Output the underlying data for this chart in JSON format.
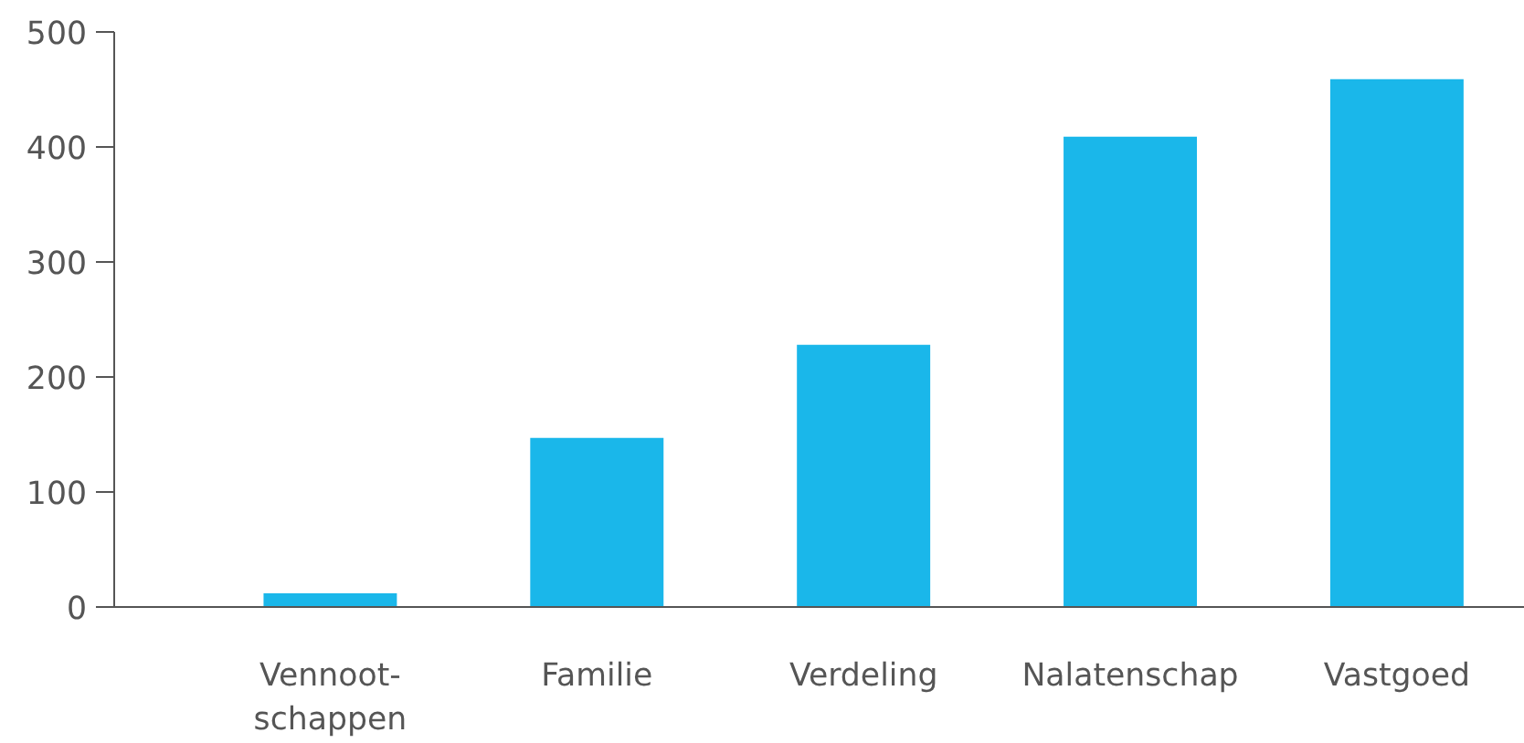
{
  "chart_data": {
    "type": "bar",
    "categories": [
      "Vennoot-\nschappen",
      "Familie",
      "Verdeling",
      "Nalatenschap",
      "Vastgoed"
    ],
    "values": [
      12,
      147,
      228,
      409,
      459
    ],
    "color": "#1ab7ea",
    "ylim": [
      0,
      500
    ],
    "yticks": [
      0,
      100,
      200,
      300,
      400,
      500
    ],
    "grid": false
  }
}
